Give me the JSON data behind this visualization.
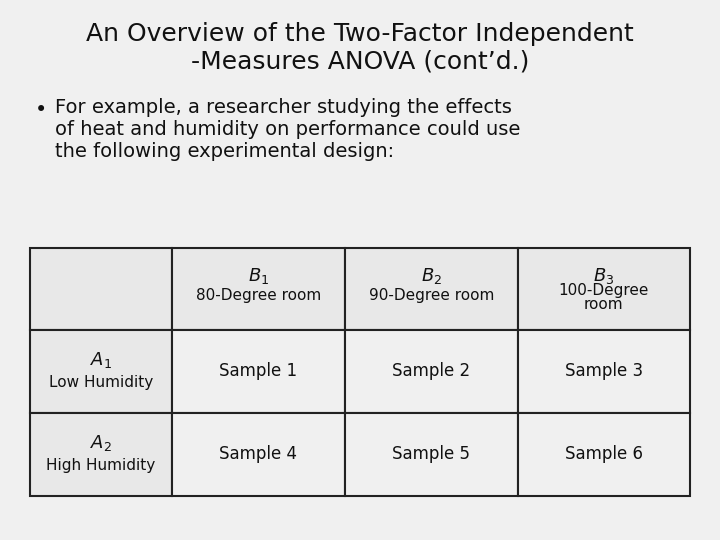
{
  "title_line1": "An Overview of the Two-Factor Independent",
  "title_line2": "-Measures ANOVA (cont’d.)",
  "bullet_text_lines": [
    "For example, a researcher studying the effects",
    "of heat and humidity on performance could use",
    "the following experimental design:"
  ],
  "bg_color": "#f0f0f0",
  "cell_bg_light": "#e8e8e8",
  "cell_bg_white": "#f0f0f0",
  "border_color": "#222222",
  "text_color": "#111111",
  "title_fontsize": 18,
  "body_fontsize": 14,
  "table_fontsize": 12,
  "row1_data": [
    "Sample 1",
    "Sample 2",
    "Sample 3"
  ],
  "row2_data": [
    "Sample 4",
    "Sample 5",
    "Sample 6"
  ]
}
